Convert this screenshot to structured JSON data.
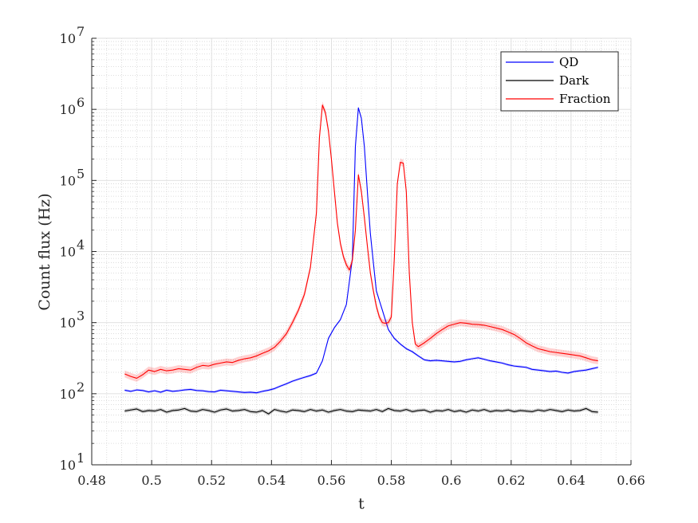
{
  "chart_data": {
    "type": "line",
    "title": "",
    "xlabel": "t",
    "ylabel": "Count flux (Hz)",
    "xlim": [
      0.48,
      0.66
    ],
    "ylim": [
      10,
      10000000
    ],
    "yscale": "log",
    "grid": true,
    "minor_grid": true,
    "legend_position": "top-right",
    "x_ticks": [
      "0.48",
      "0.5",
      "0.52",
      "0.54",
      "0.56",
      "0.58",
      "0.6",
      "0.62",
      "0.64",
      "0.66"
    ],
    "x_tick_values": [
      0.48,
      0.5,
      0.52,
      0.54,
      0.56,
      0.58,
      0.6,
      0.62,
      0.64,
      0.66
    ],
    "y_tick_bases": [
      "10",
      "10",
      "10",
      "10",
      "10",
      "10",
      "10"
    ],
    "y_tick_exps": [
      "1",
      "2",
      "3",
      "4",
      "5",
      "6",
      "7"
    ],
    "y_tick_values": [
      10,
      100,
      1000,
      10000,
      100000,
      1000000,
      10000000
    ],
    "series": [
      {
        "name": "QD",
        "color": "#0000ff",
        "points": [
          [
            0.491,
            112
          ],
          [
            0.493,
            108
          ],
          [
            0.495,
            113
          ],
          [
            0.497,
            111
          ],
          [
            0.499,
            106
          ],
          [
            0.501,
            110
          ],
          [
            0.503,
            105
          ],
          [
            0.505,
            112
          ],
          [
            0.507,
            108
          ],
          [
            0.509,
            110
          ],
          [
            0.511,
            113
          ],
          [
            0.513,
            115
          ],
          [
            0.515,
            111
          ],
          [
            0.517,
            110
          ],
          [
            0.519,
            107
          ],
          [
            0.521,
            106
          ],
          [
            0.523,
            112
          ],
          [
            0.525,
            110
          ],
          [
            0.527,
            108
          ],
          [
            0.529,
            106
          ],
          [
            0.531,
            104
          ],
          [
            0.533,
            105
          ],
          [
            0.535,
            103
          ],
          [
            0.537,
            108
          ],
          [
            0.539,
            112
          ],
          [
            0.541,
            118
          ],
          [
            0.543,
            128
          ],
          [
            0.545,
            138
          ],
          [
            0.547,
            150
          ],
          [
            0.549,
            160
          ],
          [
            0.551,
            170
          ],
          [
            0.553,
            180
          ],
          [
            0.555,
            195
          ],
          [
            0.557,
            290
          ],
          [
            0.559,
            600
          ],
          [
            0.561,
            850
          ],
          [
            0.563,
            1100
          ],
          [
            0.565,
            1800
          ],
          [
            0.567,
            8000
          ],
          [
            0.568,
            300000
          ],
          [
            0.569,
            1050000
          ],
          [
            0.57,
            750000
          ],
          [
            0.571,
            300000
          ],
          [
            0.572,
            70000
          ],
          [
            0.573,
            18000
          ],
          [
            0.574,
            7000
          ],
          [
            0.575,
            2800
          ],
          [
            0.577,
            1500
          ],
          [
            0.579,
            800
          ],
          [
            0.581,
            600
          ],
          [
            0.583,
            500
          ],
          [
            0.585,
            430
          ],
          [
            0.587,
            390
          ],
          [
            0.589,
            340
          ],
          [
            0.591,
            300
          ],
          [
            0.593,
            290
          ],
          [
            0.595,
            295
          ],
          [
            0.597,
            290
          ],
          [
            0.599,
            285
          ],
          [
            0.601,
            280
          ],
          [
            0.603,
            285
          ],
          [
            0.605,
            300
          ],
          [
            0.607,
            310
          ],
          [
            0.609,
            320
          ],
          [
            0.611,
            305
          ],
          [
            0.613,
            290
          ],
          [
            0.615,
            280
          ],
          [
            0.617,
            270
          ],
          [
            0.619,
            255
          ],
          [
            0.621,
            245
          ],
          [
            0.623,
            240
          ],
          [
            0.625,
            235
          ],
          [
            0.627,
            220
          ],
          [
            0.629,
            215
          ],
          [
            0.631,
            210
          ],
          [
            0.633,
            205
          ],
          [
            0.635,
            208
          ],
          [
            0.637,
            200
          ],
          [
            0.639,
            195
          ],
          [
            0.641,
            205
          ],
          [
            0.643,
            210
          ],
          [
            0.645,
            215
          ],
          [
            0.647,
            225
          ],
          [
            0.649,
            235
          ]
        ]
      },
      {
        "name": "Dark",
        "color": "#000000",
        "points": [
          [
            0.491,
            57
          ],
          [
            0.493,
            59
          ],
          [
            0.495,
            61
          ],
          [
            0.497,
            56
          ],
          [
            0.499,
            58
          ],
          [
            0.501,
            57
          ],
          [
            0.503,
            60
          ],
          [
            0.505,
            55
          ],
          [
            0.507,
            58
          ],
          [
            0.509,
            59
          ],
          [
            0.511,
            62
          ],
          [
            0.513,
            57
          ],
          [
            0.515,
            56
          ],
          [
            0.517,
            60
          ],
          [
            0.519,
            58
          ],
          [
            0.521,
            55
          ],
          [
            0.523,
            59
          ],
          [
            0.525,
            61
          ],
          [
            0.527,
            57
          ],
          [
            0.529,
            58
          ],
          [
            0.531,
            60
          ],
          [
            0.533,
            56
          ],
          [
            0.535,
            55
          ],
          [
            0.537,
            58
          ],
          [
            0.539,
            52
          ],
          [
            0.541,
            60
          ],
          [
            0.543,
            57
          ],
          [
            0.545,
            55
          ],
          [
            0.547,
            59
          ],
          [
            0.549,
            58
          ],
          [
            0.551,
            56
          ],
          [
            0.553,
            60
          ],
          [
            0.555,
            57
          ],
          [
            0.557,
            59
          ],
          [
            0.559,
            55
          ],
          [
            0.561,
            58
          ],
          [
            0.563,
            60
          ],
          [
            0.565,
            57
          ],
          [
            0.567,
            56
          ],
          [
            0.569,
            59
          ],
          [
            0.571,
            58
          ],
          [
            0.573,
            57
          ],
          [
            0.575,
            60
          ],
          [
            0.577,
            56
          ],
          [
            0.579,
            62
          ],
          [
            0.581,
            58
          ],
          [
            0.583,
            57
          ],
          [
            0.585,
            60
          ],
          [
            0.587,
            56
          ],
          [
            0.589,
            58
          ],
          [
            0.591,
            59
          ],
          [
            0.593,
            55
          ],
          [
            0.595,
            58
          ],
          [
            0.597,
            57
          ],
          [
            0.599,
            60
          ],
          [
            0.601,
            56
          ],
          [
            0.603,
            58
          ],
          [
            0.605,
            55
          ],
          [
            0.607,
            59
          ],
          [
            0.609,
            57
          ],
          [
            0.611,
            60
          ],
          [
            0.613,
            56
          ],
          [
            0.615,
            58
          ],
          [
            0.617,
            57
          ],
          [
            0.619,
            59
          ],
          [
            0.621,
            56
          ],
          [
            0.623,
            58
          ],
          [
            0.625,
            57
          ],
          [
            0.627,
            56
          ],
          [
            0.629,
            59
          ],
          [
            0.631,
            57
          ],
          [
            0.633,
            60
          ],
          [
            0.635,
            58
          ],
          [
            0.637,
            56
          ],
          [
            0.639,
            59
          ],
          [
            0.641,
            57
          ],
          [
            0.643,
            58
          ],
          [
            0.645,
            62
          ],
          [
            0.647,
            56
          ],
          [
            0.649,
            55
          ]
        ]
      },
      {
        "name": "Fraction",
        "color": "#ff0000",
        "points": [
          [
            0.491,
            190
          ],
          [
            0.493,
            175
          ],
          [
            0.495,
            165
          ],
          [
            0.497,
            185
          ],
          [
            0.499,
            215
          ],
          [
            0.501,
            205
          ],
          [
            0.503,
            220
          ],
          [
            0.505,
            210
          ],
          [
            0.507,
            215
          ],
          [
            0.509,
            225
          ],
          [
            0.511,
            220
          ],
          [
            0.513,
            215
          ],
          [
            0.515,
            235
          ],
          [
            0.517,
            250
          ],
          [
            0.519,
            245
          ],
          [
            0.521,
            260
          ],
          [
            0.523,
            270
          ],
          [
            0.525,
            280
          ],
          [
            0.527,
            275
          ],
          [
            0.529,
            295
          ],
          [
            0.531,
            310
          ],
          [
            0.533,
            320
          ],
          [
            0.535,
            340
          ],
          [
            0.537,
            370
          ],
          [
            0.539,
            400
          ],
          [
            0.541,
            450
          ],
          [
            0.543,
            550
          ],
          [
            0.545,
            700
          ],
          [
            0.547,
            1000
          ],
          [
            0.549,
            1500
          ],
          [
            0.551,
            2500
          ],
          [
            0.553,
            6000
          ],
          [
            0.555,
            35000
          ],
          [
            0.556,
            400000
          ],
          [
            0.557,
            1150000
          ],
          [
            0.558,
            900000
          ],
          [
            0.559,
            500000
          ],
          [
            0.56,
            200000
          ],
          [
            0.561,
            70000
          ],
          [
            0.562,
            25000
          ],
          [
            0.563,
            13000
          ],
          [
            0.564,
            8500
          ],
          [
            0.565,
            6500
          ],
          [
            0.566,
            5500
          ],
          [
            0.567,
            7500
          ],
          [
            0.568,
            20000
          ],
          [
            0.569,
            120000
          ],
          [
            0.57,
            70000
          ],
          [
            0.571,
            30000
          ],
          [
            0.572,
            12000
          ],
          [
            0.573,
            5000
          ],
          [
            0.574,
            2800
          ],
          [
            0.575,
            1700
          ],
          [
            0.576,
            1200
          ],
          [
            0.577,
            1000
          ],
          [
            0.578,
            980
          ],
          [
            0.579,
            1000
          ],
          [
            0.58,
            1200
          ],
          [
            0.581,
            8000
          ],
          [
            0.582,
            90000
          ],
          [
            0.583,
            180000
          ],
          [
            0.584,
            175000
          ],
          [
            0.585,
            70000
          ],
          [
            0.586,
            5000
          ],
          [
            0.587,
            1000
          ],
          [
            0.588,
            500
          ],
          [
            0.589,
            460
          ],
          [
            0.591,
            520
          ],
          [
            0.593,
            600
          ],
          [
            0.595,
            700
          ],
          [
            0.597,
            800
          ],
          [
            0.599,
            900
          ],
          [
            0.601,
            950
          ],
          [
            0.603,
            1000
          ],
          [
            0.605,
            980
          ],
          [
            0.607,
            950
          ],
          [
            0.609,
            940
          ],
          [
            0.611,
            920
          ],
          [
            0.613,
            880
          ],
          [
            0.615,
            840
          ],
          [
            0.617,
            800
          ],
          [
            0.619,
            740
          ],
          [
            0.621,
            680
          ],
          [
            0.623,
            600
          ],
          [
            0.625,
            520
          ],
          [
            0.627,
            470
          ],
          [
            0.629,
            430
          ],
          [
            0.631,
            410
          ],
          [
            0.633,
            390
          ],
          [
            0.635,
            380
          ],
          [
            0.637,
            370
          ],
          [
            0.639,
            360
          ],
          [
            0.641,
            350
          ],
          [
            0.643,
            340
          ],
          [
            0.645,
            320
          ],
          [
            0.647,
            300
          ],
          [
            0.649,
            290
          ]
        ]
      }
    ]
  }
}
